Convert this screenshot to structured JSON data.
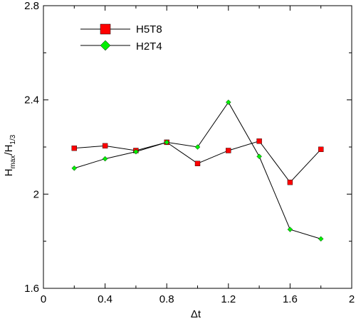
{
  "chart_data": {
    "type": "line",
    "title": "",
    "xlabel": "Δt",
    "ylabel": {
      "base1": "H",
      "sub1": "max",
      "slash": "/",
      "base2": "H",
      "sub2": "1/3"
    },
    "xlim": [
      0,
      2
    ],
    "ylim": [
      1.6,
      2.8
    ],
    "xticks": [
      "0",
      "0.4",
      "0.8",
      "1.2",
      "1.6",
      "2"
    ],
    "yticks": [
      "1.6",
      "2",
      "2.4",
      "2.8"
    ],
    "grid": false,
    "legend_position": "top-left",
    "x": [
      0.2,
      0.4,
      0.6,
      0.8,
      1.0,
      1.2,
      1.4,
      1.6,
      1.8
    ],
    "series": [
      {
        "name": "H5T8",
        "marker": "square",
        "color": "#ff0000",
        "values": [
          2.195,
          2.205,
          2.185,
          2.22,
          2.13,
          2.185,
          2.225,
          2.05,
          2.19
        ]
      },
      {
        "name": "H2T4",
        "marker": "diamond",
        "color": "#00ee00",
        "values": [
          2.11,
          2.15,
          2.18,
          2.22,
          2.2,
          2.39,
          2.16,
          1.85,
          1.81
        ]
      }
    ],
    "line_color": "#000000"
  }
}
